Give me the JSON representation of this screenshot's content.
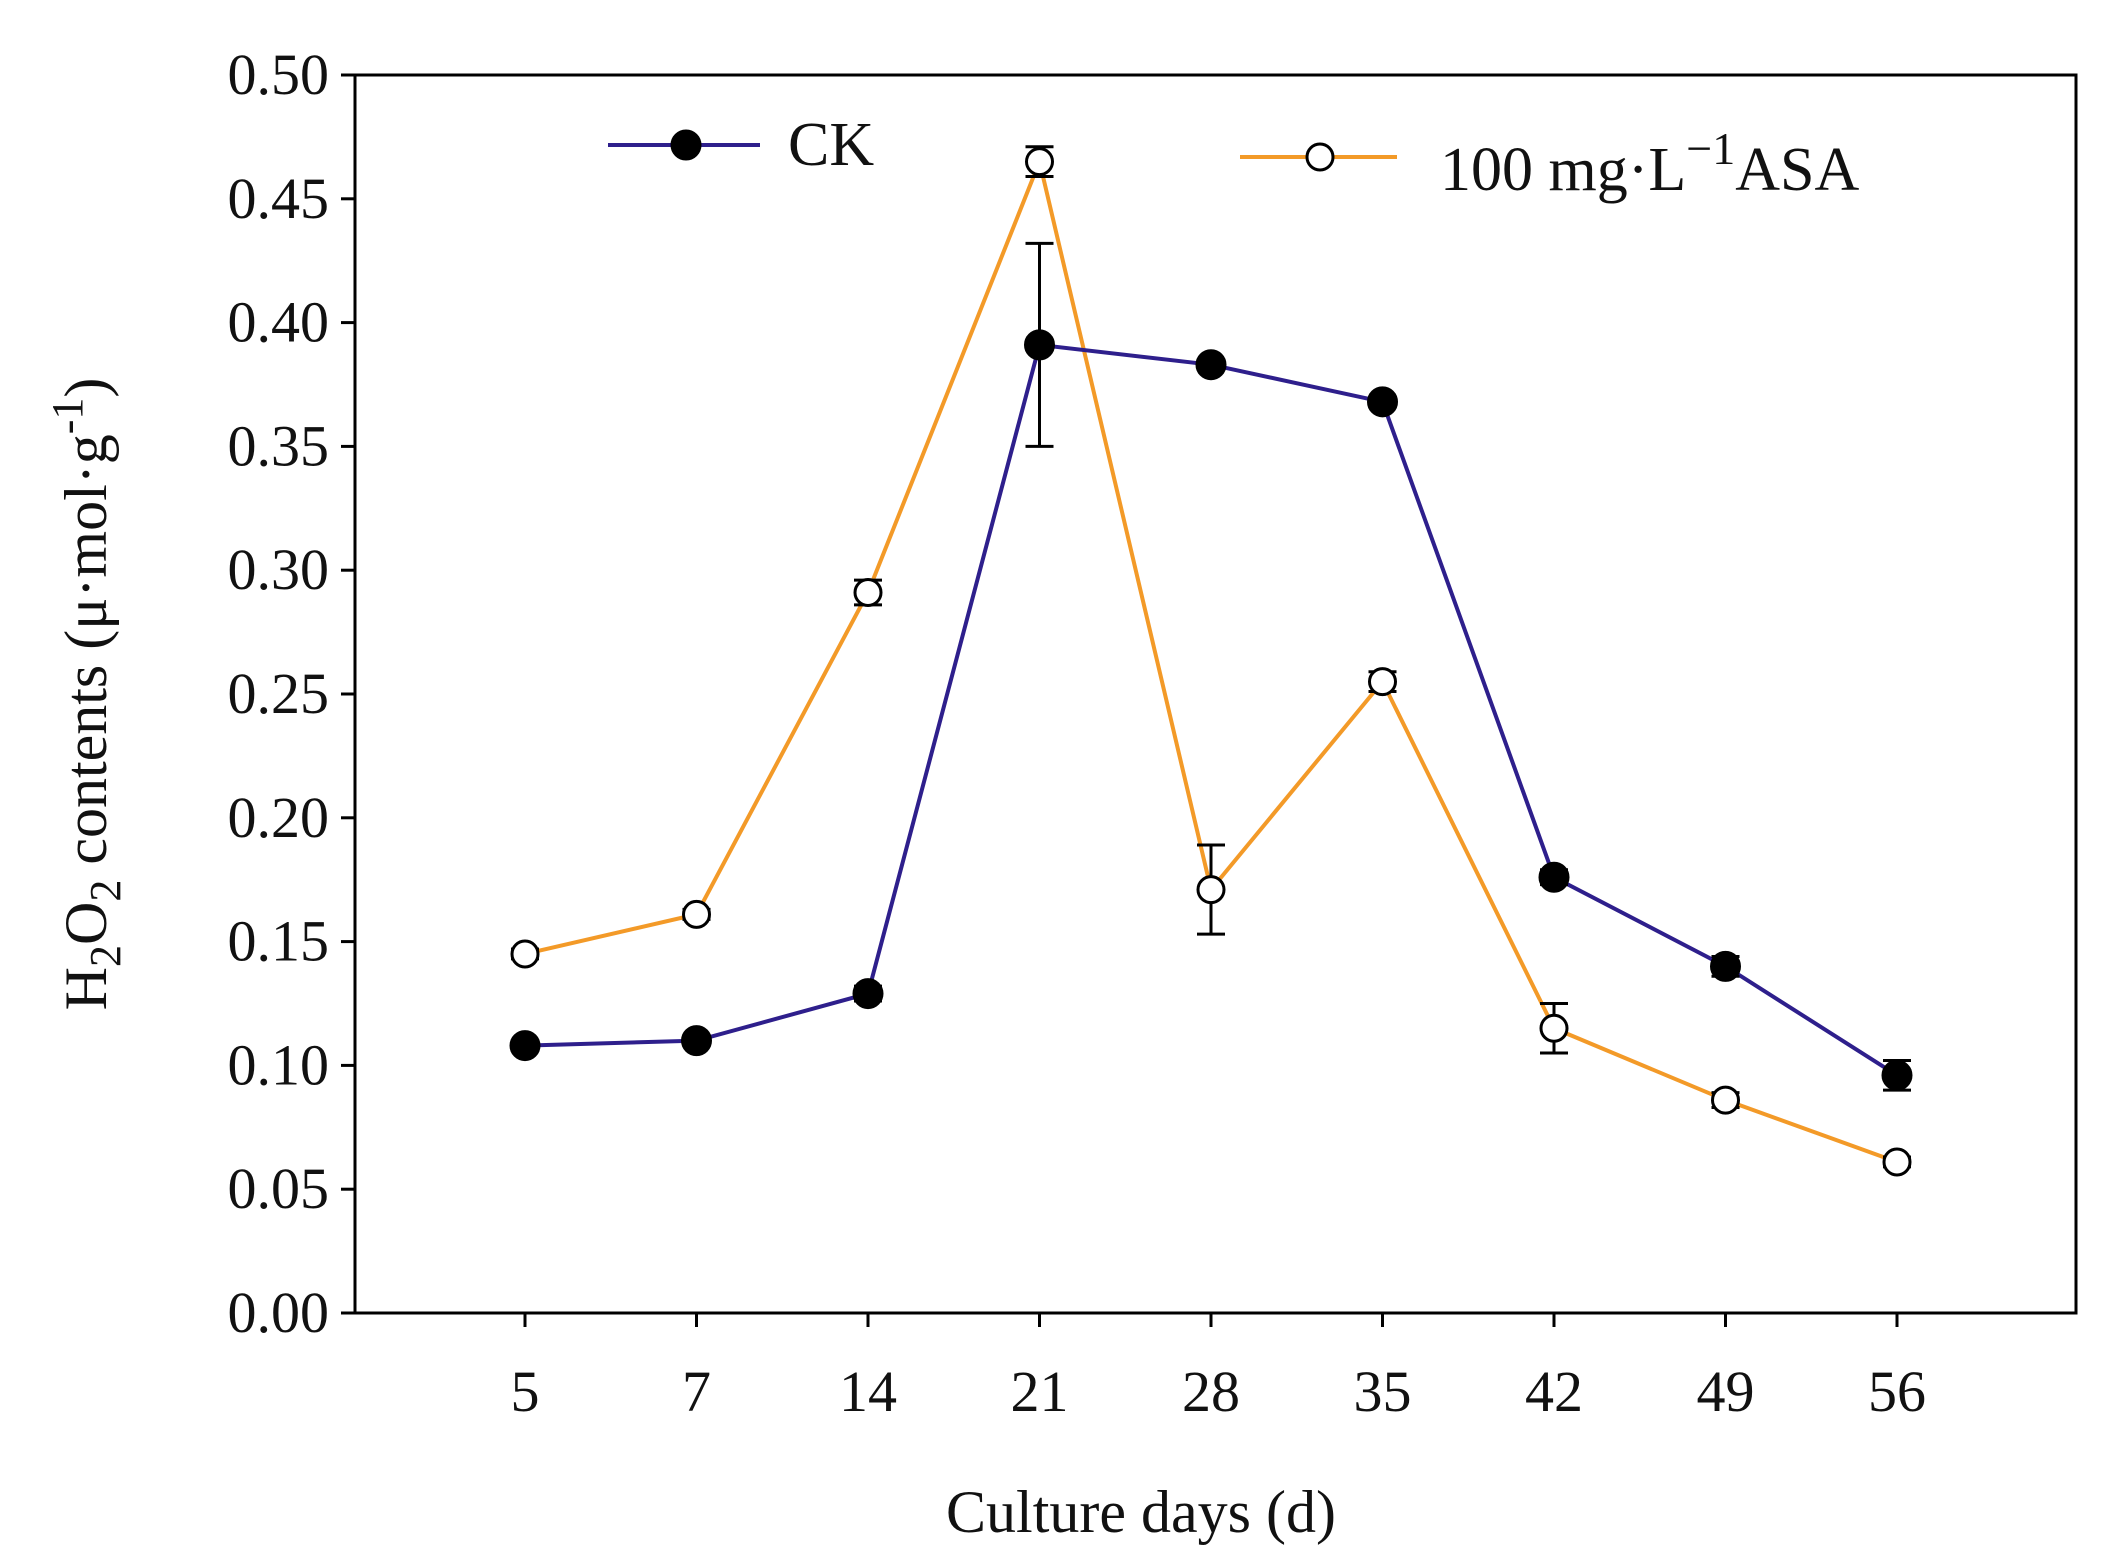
{
  "chart_data": {
    "type": "line",
    "title": "",
    "xlabel": "Culture days (d)",
    "ylabel": {
      "prefix": "H",
      "sub1": "2",
      "mid": "O",
      "sub2": "2",
      "suffix": " contents (μ·mol·g",
      "sup": "-1",
      "close": ")"
    },
    "categories": [
      "5",
      "7",
      "14",
      "21",
      "28",
      "35",
      "42",
      "49",
      "56"
    ],
    "ylim": [
      0,
      0.5
    ],
    "yticks": [
      "0.00",
      "0.05",
      "0.10",
      "0.15",
      "0.20",
      "0.25",
      "0.30",
      "0.35",
      "0.40",
      "0.45",
      "0.50"
    ],
    "series": [
      {
        "name": "CK",
        "color": "#2e1f8c",
        "marker": "filled-circle",
        "values": [
          0.108,
          0.11,
          0.129,
          0.391,
          0.383,
          0.368,
          0.176,
          0.14,
          0.096
        ],
        "errors": [
          0.002,
          0.002,
          0.003,
          0.041,
          0.002,
          0.002,
          0.003,
          0.004,
          0.006
        ]
      },
      {
        "name": "100 mg·L−1ASA",
        "name_parts": {
          "pre": "100 mg·L",
          "sup": "−1",
          "post": "ASA"
        },
        "color": "#f39a28",
        "marker": "open-circle",
        "values": [
          0.145,
          0.161,
          0.291,
          0.465,
          0.171,
          0.255,
          0.115,
          0.086,
          0.061
        ],
        "errors": [
          0.002,
          0.002,
          0.005,
          0.006,
          0.018,
          0.004,
          0.01,
          0.003,
          0.002
        ]
      }
    ],
    "legend": "top"
  }
}
